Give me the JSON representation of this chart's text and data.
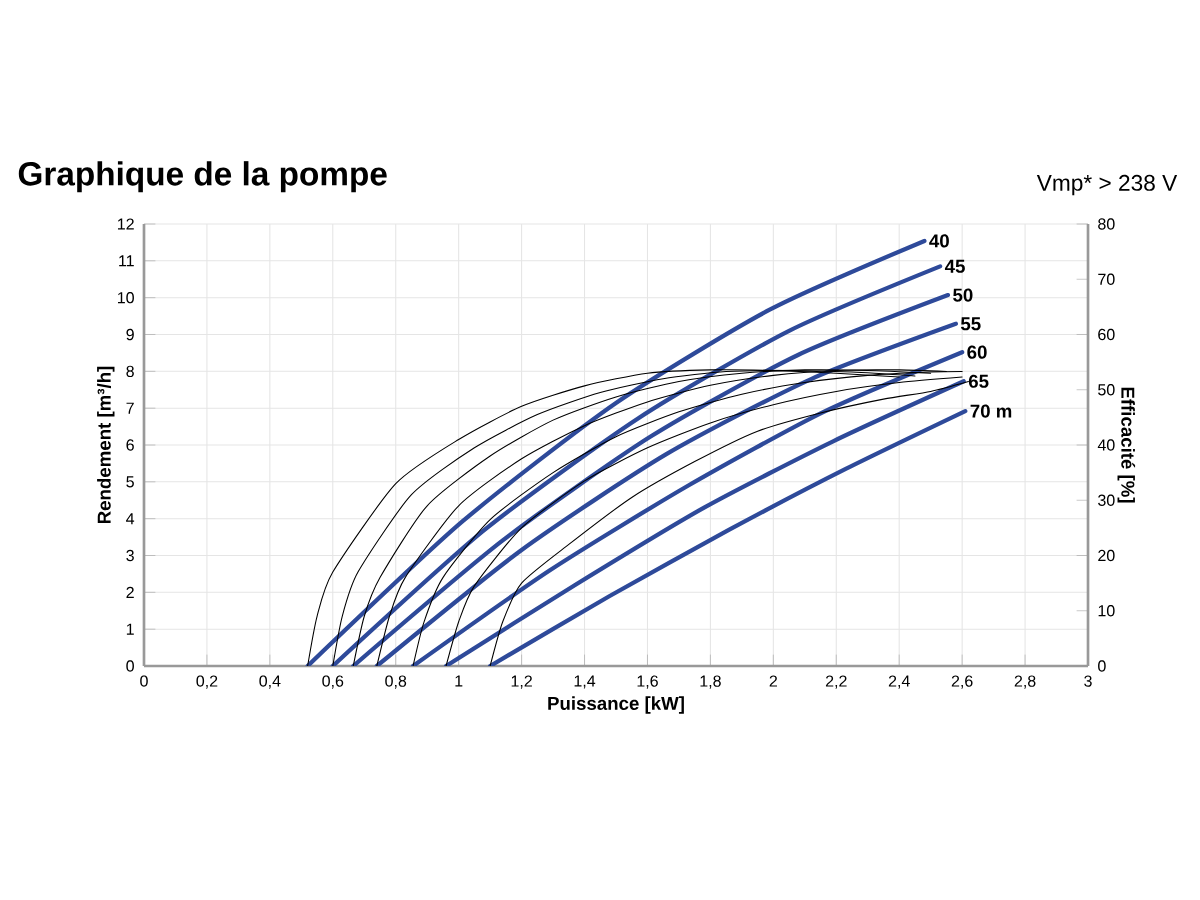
{
  "chart_data": {
    "type": "line",
    "title": "Graphique de la pompe",
    "annotations": [
      "Vmp* > 238 V"
    ],
    "xlabel": "Puissance [kW]",
    "ylabel": "Rendement [m³/h]",
    "y2label": "Efficacité [%]",
    "xlim": [
      0,
      3
    ],
    "ylim": [
      0,
      12
    ],
    "y2lim": [
      0,
      80
    ],
    "xticks": [
      0,
      {
        "value": 0.2,
        "label": "0,2"
      },
      {
        "value": 0.4,
        "label": "0,4"
      },
      {
        "value": 0.6,
        "label": "0,6"
      },
      {
        "value": 0.8,
        "label": "0,8"
      },
      1,
      {
        "value": 1.2,
        "label": "1,2"
      },
      {
        "value": 1.4,
        "label": "1,4"
      },
      {
        "value": 1.6,
        "label": "1,6"
      },
      {
        "value": 1.8,
        "label": "1,8"
      },
      2,
      {
        "value": 2.2,
        "label": "2,2"
      },
      {
        "value": 2.4,
        "label": "2,4"
      },
      {
        "value": 2.6,
        "label": "2,6"
      },
      {
        "value": 2.8,
        "label": "2,8"
      },
      3
    ],
    "yticks": [
      0,
      1,
      2,
      3,
      4,
      5,
      6,
      7,
      8,
      9,
      10,
      11,
      12
    ],
    "y2ticks": [
      0,
      10,
      20,
      30,
      40,
      50,
      60,
      70,
      80
    ],
    "grid": true,
    "marker": "none",
    "series": [
      {
        "name": "40",
        "color": "#2e4a9a",
        "x": [
          0.52,
          1.01,
          1.5,
          1.99,
          2.48
        ],
        "values": [
          0,
          3.91,
          7.14,
          9.68,
          11.54
        ]
      },
      {
        "name": "45",
        "color": "#2e4a9a",
        "x": [
          0.6,
          1.08,
          1.57,
          2.05,
          2.53
        ],
        "values": [
          0,
          3.68,
          6.72,
          9.1,
          10.85
        ]
      },
      {
        "name": "50",
        "color": "#2e4a9a",
        "x": [
          0.665,
          1.14,
          1.61,
          2.08,
          2.555
        ],
        "values": [
          0,
          3.41,
          6.23,
          8.45,
          10.07
        ]
      },
      {
        "name": "55",
        "color": "#2e4a9a",
        "x": [
          0.74,
          1.2,
          1.66,
          2.12,
          2.58
        ],
        "values": [
          0,
          3.15,
          5.75,
          7.79,
          9.29
        ]
      },
      {
        "name": "60",
        "color": "#2e4a9a",
        "x": [
          0.855,
          1.29,
          1.73,
          2.16,
          2.6
        ],
        "values": [
          0,
          2.6,
          4.9,
          6.9,
          8.52
        ]
      },
      {
        "name": "65",
        "color": "#2e4a9a",
        "x": [
          0.96,
          1.37,
          1.78,
          2.19,
          2.605
        ],
        "values": [
          0,
          2.2,
          4.3,
          6.1,
          7.73
        ]
      },
      {
        "name": "70 m",
        "color": "#2e4a9a",
        "x": [
          1.1,
          1.48,
          1.86,
          2.23,
          2.61
        ],
        "values": [
          0,
          1.9,
          3.7,
          5.35,
          6.92
        ]
      },
      {
        "color": "#000000",
        "axis": "y2",
        "x": [
          0.52,
          0.55,
          0.6,
          0.8,
          1.0,
          1.2,
          1.4,
          1.6,
          1.8,
          2.0,
          2.2,
          2.4
        ],
        "values": [
          0,
          9,
          17,
          33,
          41,
          47,
          50.7,
          53,
          53.6,
          53.5,
          53,
          52.3
        ]
      },
      {
        "color": "#000000",
        "axis": "y2",
        "x": [
          0.6,
          0.63,
          0.68,
          0.85,
          1.05,
          1.25,
          1.45,
          1.65,
          1.85,
          2.05,
          2.25,
          2.45
        ],
        "values": [
          0,
          9,
          17,
          31,
          39.5,
          45.5,
          49.5,
          52,
          53.3,
          53.5,
          53.2,
          52.5
        ]
      },
      {
        "color": "#000000",
        "axis": "y2",
        "x": [
          0.665,
          0.7,
          0.75,
          0.9,
          1.1,
          1.3,
          1.5,
          1.7,
          1.9,
          2.1,
          2.3,
          2.5
        ],
        "values": [
          0,
          9,
          16,
          29,
          38,
          44.5,
          48.7,
          51.5,
          53,
          53.6,
          53.5,
          53
        ]
      },
      {
        "color": "#000000",
        "axis": "y2",
        "x": [
          0.74,
          0.78,
          0.83,
          1.0,
          1.2,
          1.4,
          1.6,
          1.8,
          2.0,
          2.2,
          2.4,
          2.55
        ],
        "values": [
          0,
          9,
          16,
          29,
          37.5,
          43.5,
          47.8,
          50.8,
          52.6,
          53.5,
          53.6,
          53.3
        ]
      },
      {
        "color": "#000000",
        "axis": "y2",
        "x": [
          0.855,
          0.89,
          0.95,
          1.1,
          1.3,
          1.5,
          1.7,
          1.9,
          2.1,
          2.3,
          2.5,
          2.6
        ],
        "values": [
          0,
          8,
          16,
          26.5,
          35,
          41.5,
          46,
          49.2,
          51.3,
          52.6,
          53.2,
          53.3
        ]
      },
      {
        "color": "#000000",
        "axis": "y2",
        "x": [
          0.96,
          1.0,
          1.05,
          1.2,
          1.4,
          1.6,
          1.8,
          2.0,
          2.2,
          2.4,
          2.6
        ],
        "values": [
          0,
          8,
          14.5,
          25,
          33.5,
          39.5,
          44,
          47.3,
          49.7,
          51.3,
          52.3
        ]
      },
      {
        "color": "#000000",
        "axis": "y2",
        "x": [
          1.1,
          1.14,
          1.2,
          1.35,
          1.55,
          1.75,
          1.95,
          2.15,
          2.35,
          2.5,
          2.62
        ],
        "values": [
          0,
          8,
          15,
          22,
          30.5,
          37,
          42.5,
          45.8,
          48.3,
          49.7,
          51.5
        ]
      }
    ]
  }
}
